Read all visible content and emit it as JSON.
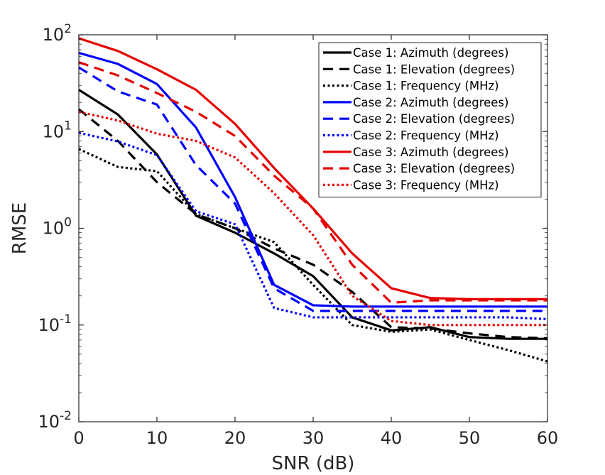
{
  "chart_data": {
    "type": "line",
    "title": "",
    "xlabel": "SNR (dB)",
    "ylabel": "RMSE",
    "yscale": "log",
    "xlim": [
      0,
      60
    ],
    "ylim": [
      0.01,
      100
    ],
    "xticks": [
      0,
      10,
      20,
      30,
      40,
      50,
      60
    ],
    "xtick_labels": [
      "0",
      "10",
      "20",
      "30",
      "40",
      "50",
      "60"
    ],
    "yticks": [
      {
        "value": 0.01,
        "base": "10",
        "exp": "-2"
      },
      {
        "value": 0.1,
        "base": "10",
        "exp": "-1"
      },
      {
        "value": 1,
        "base": "10",
        "exp": "0"
      },
      {
        "value": 10,
        "base": "10",
        "exp": "1"
      },
      {
        "value": 100,
        "base": "10",
        "exp": "2"
      }
    ],
    "grid": false,
    "legend_position": "top-right",
    "x": [
      0,
      5,
      10,
      15,
      20,
      25,
      30,
      35,
      40,
      45,
      50,
      55,
      60
    ],
    "series": [
      {
        "name": "Case 1: Azimuth (degrees)",
        "color": "#000000",
        "style": "solid",
        "values": [
          27,
          15,
          5.8,
          1.35,
          0.9,
          0.55,
          0.32,
          0.12,
          0.088,
          0.095,
          0.075,
          0.072,
          0.072
        ]
      },
      {
        "name": "Case 1: Elevation (degrees)",
        "color": "#000000",
        "style": "dashed",
        "values": [
          17,
          8,
          3,
          1.4,
          1.0,
          0.62,
          0.42,
          0.22,
          0.095,
          0.092,
          0.082,
          0.075,
          0.073
        ]
      },
      {
        "name": "Case 1: Frequency (MHz)",
        "color": "#000000",
        "style": "dotted",
        "values": [
          6.6,
          4.3,
          3.9,
          1.4,
          1.0,
          0.72,
          0.26,
          0.1,
          0.085,
          0.09,
          0.07,
          0.055,
          0.042
        ]
      },
      {
        "name": "Case 2: Azimuth (degrees)",
        "color": "#0000ff",
        "style": "solid",
        "values": [
          65,
          50,
          31,
          11,
          2.1,
          0.26,
          0.16,
          0.155,
          0.155,
          0.155,
          0.155,
          0.155,
          0.155
        ]
      },
      {
        "name": "Case 2: Elevation (degrees)",
        "color": "#0000ff",
        "style": "dashed",
        "values": [
          46,
          26,
          19,
          4.5,
          1.8,
          0.24,
          0.14,
          0.14,
          0.14,
          0.14,
          0.14,
          0.14,
          0.14
        ]
      },
      {
        "name": "Case 2: Frequency (MHz)",
        "color": "#0000ff",
        "style": "dotted",
        "values": [
          9.7,
          7.9,
          5.7,
          1.5,
          1.1,
          0.15,
          0.12,
          0.12,
          0.12,
          0.12,
          0.12,
          0.12,
          0.115
        ]
      },
      {
        "name": "Case 3: Azimuth (degrees)",
        "color": "#e60000",
        "style": "solid",
        "values": [
          92,
          68,
          44,
          27,
          12,
          4.2,
          1.6,
          0.55,
          0.24,
          0.19,
          0.185,
          0.185,
          0.185
        ]
      },
      {
        "name": "Case 3: Elevation (degrees)",
        "color": "#e60000",
        "style": "dashed",
        "values": [
          52,
          38,
          25,
          16,
          9,
          3.5,
          1.6,
          0.42,
          0.17,
          0.18,
          0.18,
          0.18,
          0.18
        ]
      },
      {
        "name": "Case 3: Frequency (MHz)",
        "color": "#e60000",
        "style": "dotted",
        "values": [
          16,
          13,
          9.5,
          8,
          5.4,
          2.3,
          0.85,
          0.2,
          0.11,
          0.1,
          0.1,
          0.1,
          0.1
        ]
      }
    ]
  }
}
